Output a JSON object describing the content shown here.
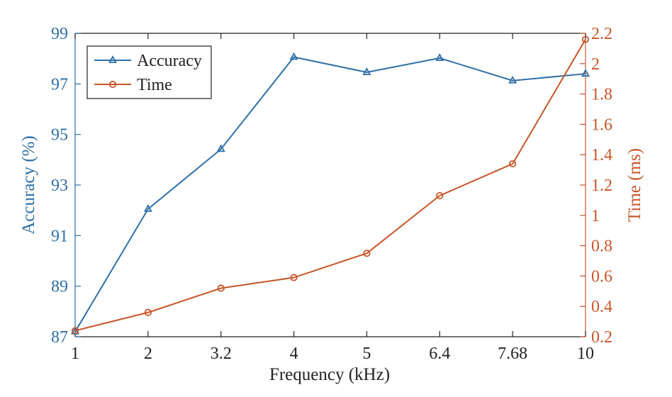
{
  "chart_data": {
    "type": "line",
    "x_categories": [
      "1",
      "2",
      "3.2",
      "4",
      "5",
      "6.4",
      "7.68",
      "10"
    ],
    "xlabel": "Frequency (kHz)",
    "y_left": {
      "label": "Accuracy (%)",
      "lim": [
        87,
        99
      ],
      "ticks": [
        "87",
        "89",
        "91",
        "93",
        "95",
        "97",
        "99"
      ]
    },
    "y_right": {
      "label": "Time (ms)",
      "lim": [
        0.2,
        2.2
      ],
      "ticks": [
        "0.2",
        "0.4",
        "0.6",
        "0.8",
        "1",
        "1.2",
        "1.4",
        "1.6",
        "1.8",
        "2",
        "2.2"
      ]
    },
    "series": [
      {
        "name": "Accuracy",
        "axis": "left",
        "marker": "triangle",
        "color": "#2E6FA8",
        "values": [
          87.2,
          92.05,
          94.42,
          98.06,
          97.46,
          98.02,
          97.13,
          97.4
        ]
      },
      {
        "name": "Time",
        "axis": "right",
        "marker": "circle",
        "color": "#C8562A",
        "values": [
          0.24,
          0.36,
          0.52,
          0.59,
          0.75,
          1.13,
          1.34,
          2.16
        ]
      }
    ],
    "legend": "top-left",
    "grid": false
  }
}
